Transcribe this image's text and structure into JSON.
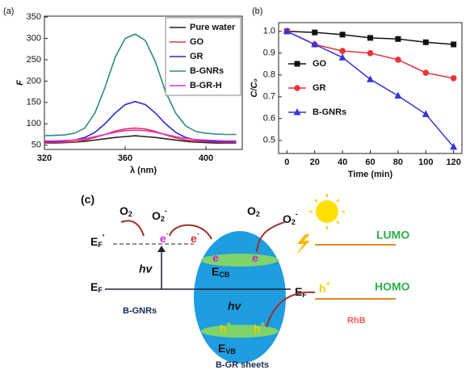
{
  "chart_data": [
    {
      "type": "line",
      "panel_label": "(a)",
      "x_label": "λ (nm)",
      "y_label": "F",
      "x": [
        320,
        325,
        330,
        335,
        340,
        345,
        350,
        355,
        360,
        365,
        370,
        375,
        380,
        385,
        390,
        395,
        400,
        405,
        410,
        415
      ],
      "series": [
        {
          "name": "Pure water",
          "color": "#222222",
          "values": [
            55,
            55,
            56,
            57,
            59,
            62,
            65,
            68,
            70,
            72,
            70,
            68,
            65,
            62,
            59,
            57,
            56,
            55,
            55,
            55
          ]
        },
        {
          "name": "GO",
          "color": "#e8333a",
          "values": [
            55,
            56,
            57,
            58,
            62,
            68,
            75,
            83,
            88,
            90,
            88,
            82,
            74,
            67,
            62,
            59,
            58,
            57,
            56,
            56
          ]
        },
        {
          "name": "GR",
          "color": "#2a2ad0",
          "values": [
            58,
            58,
            60,
            62,
            68,
            80,
            100,
            125,
            145,
            152,
            145,
            125,
            100,
            80,
            68,
            62,
            60,
            58,
            58,
            57
          ]
        },
        {
          "name": "B-GNRs",
          "color": "#2e8b7a",
          "values": [
            72,
            73,
            74,
            78,
            90,
            125,
            185,
            255,
            300,
            310,
            295,
            245,
            175,
            125,
            95,
            82,
            78,
            76,
            75,
            75
          ]
        },
        {
          "name": "B-GR-H",
          "color": "#e030d0",
          "values": [
            60,
            60,
            61,
            62,
            65,
            70,
            75,
            80,
            84,
            85,
            84,
            80,
            75,
            70,
            66,
            63,
            62,
            61,
            60,
            60
          ]
        }
      ],
      "xlim": [
        320,
        418
      ],
      "xticks": [
        320,
        360,
        400
      ],
      "ylim": [
        40,
        352
      ],
      "yticks": [
        50,
        100,
        150,
        200,
        250,
        300,
        350
      ],
      "legend": "upper right"
    },
    {
      "type": "line",
      "panel_label": "(b)",
      "x_label": "Time (min)",
      "y_label": "C/C₀",
      "x": [
        0,
        20,
        40,
        60,
        80,
        100,
        120
      ],
      "series": [
        {
          "name": "GO",
          "color": "#111111",
          "marker": "square",
          "values": [
            1.0,
            0.995,
            0.985,
            0.97,
            0.965,
            0.95,
            0.94
          ]
        },
        {
          "name": "GR",
          "color": "#e8333a",
          "marker": "circle",
          "values": [
            1.0,
            0.94,
            0.91,
            0.9,
            0.87,
            0.81,
            0.785
          ]
        },
        {
          "name": "B-GNRs",
          "color": "#3535d8",
          "marker": "triangle",
          "values": [
            1.0,
            0.94,
            0.88,
            0.78,
            0.705,
            0.62,
            0.47
          ]
        }
      ],
      "xlim": [
        -6,
        126
      ],
      "xticks": [
        0,
        20,
        40,
        60,
        80,
        100,
        120
      ],
      "ylim": [
        0.44,
        1.04
      ],
      "yticks": [
        0.5,
        0.6,
        0.7,
        0.8,
        0.9,
        {
          "value": 1.0,
          "label": "1.0"
        }
      ],
      "legend": "center left"
    }
  ],
  "diagram": {
    "panel_label": "(c)",
    "o2_left": {
      "base": "O",
      "sub": "2"
    },
    "o2_minus_left": {
      "base": "O",
      "sub": "2",
      "sup": "-"
    },
    "ef_prime": {
      "base": "E",
      "sub": "F",
      "sup": "′"
    },
    "e_left_1": {
      "base": "e",
      "sup": "-"
    },
    "e_left_2": {
      "base": "e",
      "sup": "-"
    },
    "hv_left": "hv",
    "ef_left": {
      "base": "E",
      "sub": "F"
    },
    "b_gnrs": "B-GNRs",
    "e_cb_1": {
      "base": "e",
      "sup": "-"
    },
    "e_cb_2": {
      "base": "e",
      "sup": "-"
    },
    "ecb": {
      "base": "E",
      "sub": "CB"
    },
    "o2_right": {
      "base": "O",
      "sub": "2"
    },
    "o2_minus_right": {
      "base": "O",
      "sub": "2",
      "sup": "-"
    },
    "hv_center": "hv",
    "ef_right": {
      "base": "E",
      "sub": "F"
    },
    "h_right": {
      "base": "h",
      "sup": "+"
    },
    "h_vb_1": {
      "base": "h",
      "sup": "+"
    },
    "h_vb_2": {
      "base": "h",
      "sup": "+"
    },
    "evb": {
      "base": "E",
      "sub": "VB"
    },
    "b_gr_sheets": "B-GR sheets",
    "lumo": "LUMO",
    "homo": "HOMO",
    "rhb": "RhB"
  }
}
